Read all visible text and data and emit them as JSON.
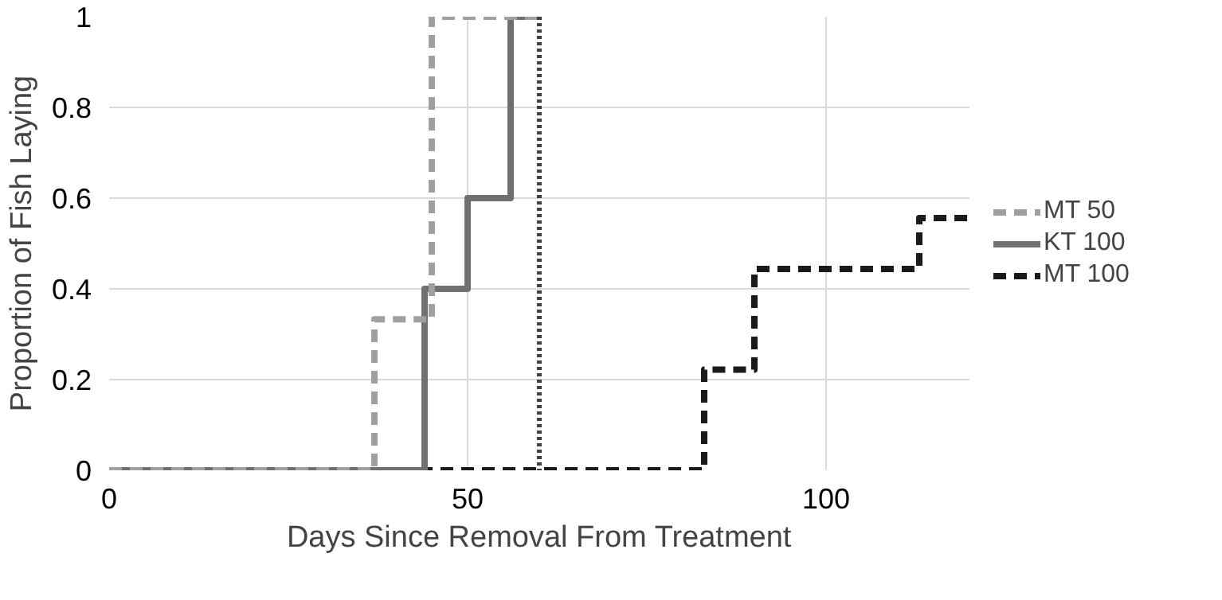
{
  "chart_data": {
    "type": "step",
    "xlabel": "Days Since Removal From Treatment",
    "ylabel": "Proportion of Fish Laying",
    "xlim": [
      0,
      120
    ],
    "xticks": [
      0,
      50,
      100
    ],
    "ylim": [
      0,
      1
    ],
    "yticks": [
      0,
      0.2,
      0.4,
      0.6,
      0.8,
      1
    ],
    "grid": true,
    "legend": "right",
    "series": [
      {
        "name": "MT 50",
        "color": "#a0a0a0",
        "line_style": "dashed",
        "x": [
          0,
          37,
          45,
          60
        ],
        "values": [
          0,
          0.333,
          1,
          1
        ]
      },
      {
        "name": "KT 100",
        "color": "#707070",
        "line_style": "solid",
        "x": [
          0,
          44,
          50,
          56,
          60
        ],
        "values": [
          0,
          0.4,
          0.6,
          1,
          1
        ]
      },
      {
        "name": "MT 100",
        "color": "#1a1a1a",
        "line_style": "dashed",
        "x": [
          0,
          83,
          90,
          113,
          120
        ],
        "values": [
          0,
          0.222,
          0.444,
          0.556,
          0.556
        ]
      }
    ],
    "ref_lines": [
      {
        "axis": "x",
        "value": 60,
        "label": null,
        "color": "#404040",
        "line_style": "dotted"
      }
    ]
  }
}
